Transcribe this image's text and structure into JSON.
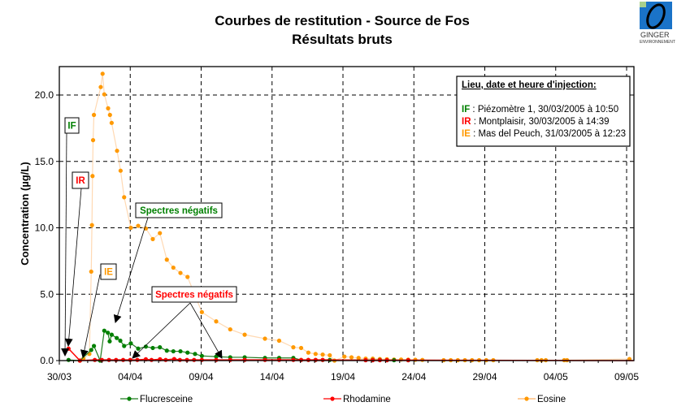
{
  "chart_data": {
    "type": "line",
    "title": "Courbes de restitution - Source de Fos",
    "subtitle": "Résultats bruts",
    "xlabel": "",
    "ylabel": "Concentration (µg/L)",
    "xlim_days_from_30_03": [
      0,
      41
    ],
    "ylim": [
      0,
      22
    ],
    "grid": true,
    "x_tick_labels": [
      "30/03",
      "04/04",
      "09/04",
      "14/04",
      "19/04",
      "24/04",
      "29/04",
      "04/05",
      "09/05"
    ],
    "y_tick_labels": [
      "0.0",
      "5.0",
      "10.0",
      "15.0",
      "20.0"
    ],
    "y_ticks": [
      0,
      5,
      10,
      15,
      20
    ],
    "legend_position": "bottom",
    "series": [
      {
        "name": "Flucresceine",
        "color": "#008000",
        "line_color": "#1f7a1f",
        "x": [
          0.65,
          1.45,
          2.25,
          2.44,
          2.88,
          3.17,
          3.42,
          3.55,
          3.69,
          4.05,
          4.3,
          4.57,
          5.04,
          5.56,
          6.1,
          6.59,
          7.09,
          7.58,
          8.04,
          8.54,
          9.04,
          9.57,
          10.05,
          11.06,
          12.05,
          13.07,
          14.5,
          15.5,
          16.5,
          17.05,
          17.56,
          18.07,
          18.57,
          19.07,
          22.1,
          22.6,
          23.1,
          23.6,
          24.6
        ],
        "y": [
          0.05,
          0,
          0.8,
          1.1,
          0,
          2.25,
          2.1,
          1.45,
          1.95,
          1.7,
          1.5,
          1.1,
          1.3,
          0.9,
          1.05,
          0.95,
          1.0,
          0.75,
          0.7,
          0.7,
          0.6,
          0.5,
          0.35,
          0.3,
          0.25,
          0.25,
          0.2,
          0.2,
          0.2,
          0.05,
          0.05,
          0.05,
          0.05,
          0.05,
          0.05,
          0.05,
          0.03,
          0.03,
          0.03
        ]
      },
      {
        "name": "Rhodamine",
        "color": "#ff0000",
        "line_color": "#ff0000",
        "x": [
          0.65,
          1.45,
          2.5,
          3.0,
          3.5,
          4.0,
          4.5,
          5.0,
          5.5,
          6.1,
          6.5,
          7.1,
          7.5,
          8.1,
          8.5,
          9.0,
          9.5,
          10.05,
          11.06,
          12.05,
          13.07,
          14.5,
          15.5,
          16.5,
          17.05,
          17.56,
          18.07,
          18.57,
          21.6,
          22.1,
          22.6,
          23.1,
          24.6,
          40.5
        ],
        "y": [
          0.9,
          0,
          0.05,
          0.05,
          0.05,
          0.05,
          0.05,
          0.05,
          0.05,
          0.1,
          0.05,
          0.1,
          0.05,
          0.12,
          0.05,
          0.05,
          0.05,
          0.05,
          0.05,
          0.05,
          0.05,
          0.05,
          0.05,
          0.05,
          0.05,
          0.05,
          0.05,
          0.05,
          0.03,
          0.03,
          0.03,
          0.03,
          0.03,
          0
        ]
      },
      {
        "name": "Eosine",
        "color": "#ff9900",
        "line_color": "#ffd9b3",
        "x": [
          1.45,
          1.7,
          2.12,
          2.25,
          2.3,
          2.34,
          2.38,
          2.44,
          2.92,
          3.05,
          3.17,
          3.44,
          3.57,
          3.69,
          4.07,
          4.32,
          4.57,
          5.04,
          5.56,
          6.1,
          6.59,
          7.09,
          7.58,
          8.04,
          8.54,
          9.04,
          10.05,
          11.06,
          12.05,
          13.07,
          14.5,
          15.5,
          16.5,
          17.05,
          17.56,
          18.07,
          18.57,
          19.07,
          19.4,
          20.1,
          20.6,
          21.1,
          21.6,
          22.1,
          22.6,
          23.1,
          23.6,
          24.1,
          24.6,
          25.1,
          25.6,
          27.1,
          27.6,
          28.1,
          28.6,
          29.1,
          29.6,
          30.1,
          30.6,
          33.7,
          34.0,
          34.3,
          35.6,
          35.8,
          40.2
        ],
        "y": [
          0,
          0.15,
          0.5,
          6.7,
          10.2,
          13.9,
          16.6,
          18.5,
          20.6,
          21.6,
          20.05,
          19.0,
          18.5,
          17.9,
          15.8,
          14.3,
          12.3,
          10.0,
          10.15,
          9.95,
          9.15,
          9.6,
          7.6,
          7.0,
          6.6,
          6.3,
          3.65,
          2.95,
          2.35,
          1.95,
          1.65,
          1.5,
          1.0,
          0.95,
          0.6,
          0.5,
          0.45,
          0.4,
          0,
          0.3,
          0.25,
          0.2,
          0.15,
          0.15,
          0.12,
          0.1,
          0.08,
          0.08,
          0.07,
          0.06,
          0.05,
          0.03,
          0.03,
          0.03,
          0.03,
          0.03,
          0.03,
          0.03,
          0.03,
          0.03,
          0.03,
          0.03,
          0.03,
          0.03,
          0.12
        ]
      }
    ],
    "info_box": {
      "title": "Lieu, date et heure d'injection:",
      "rows": [
        {
          "code": "IF",
          "text": " : Piézomètre 1, 30/03/2005 à 10:50",
          "color": "#008000"
        },
        {
          "code": "IR",
          "text": " : Montplaisir, 30/03/2005 à 14:39",
          "color": "#ff0000"
        },
        {
          "code": "IE",
          "text": " : Mas del Peuch, 31/03/2005 à 12:23",
          "color": "#ff9900"
        }
      ]
    },
    "annotations": [
      {
        "label": "IF",
        "color": "#008000"
      },
      {
        "label": "IR",
        "color": "#ff0000"
      },
      {
        "label": "IE",
        "color": "#ff9900"
      },
      {
        "label": "Spectres négatifs",
        "color": "#008000"
      },
      {
        "label": "Spectres négatifs",
        "color": "#ff0000"
      }
    ]
  },
  "logo": {
    "text": "GINGER",
    "subtext": "ENVIRONNEMENT"
  }
}
